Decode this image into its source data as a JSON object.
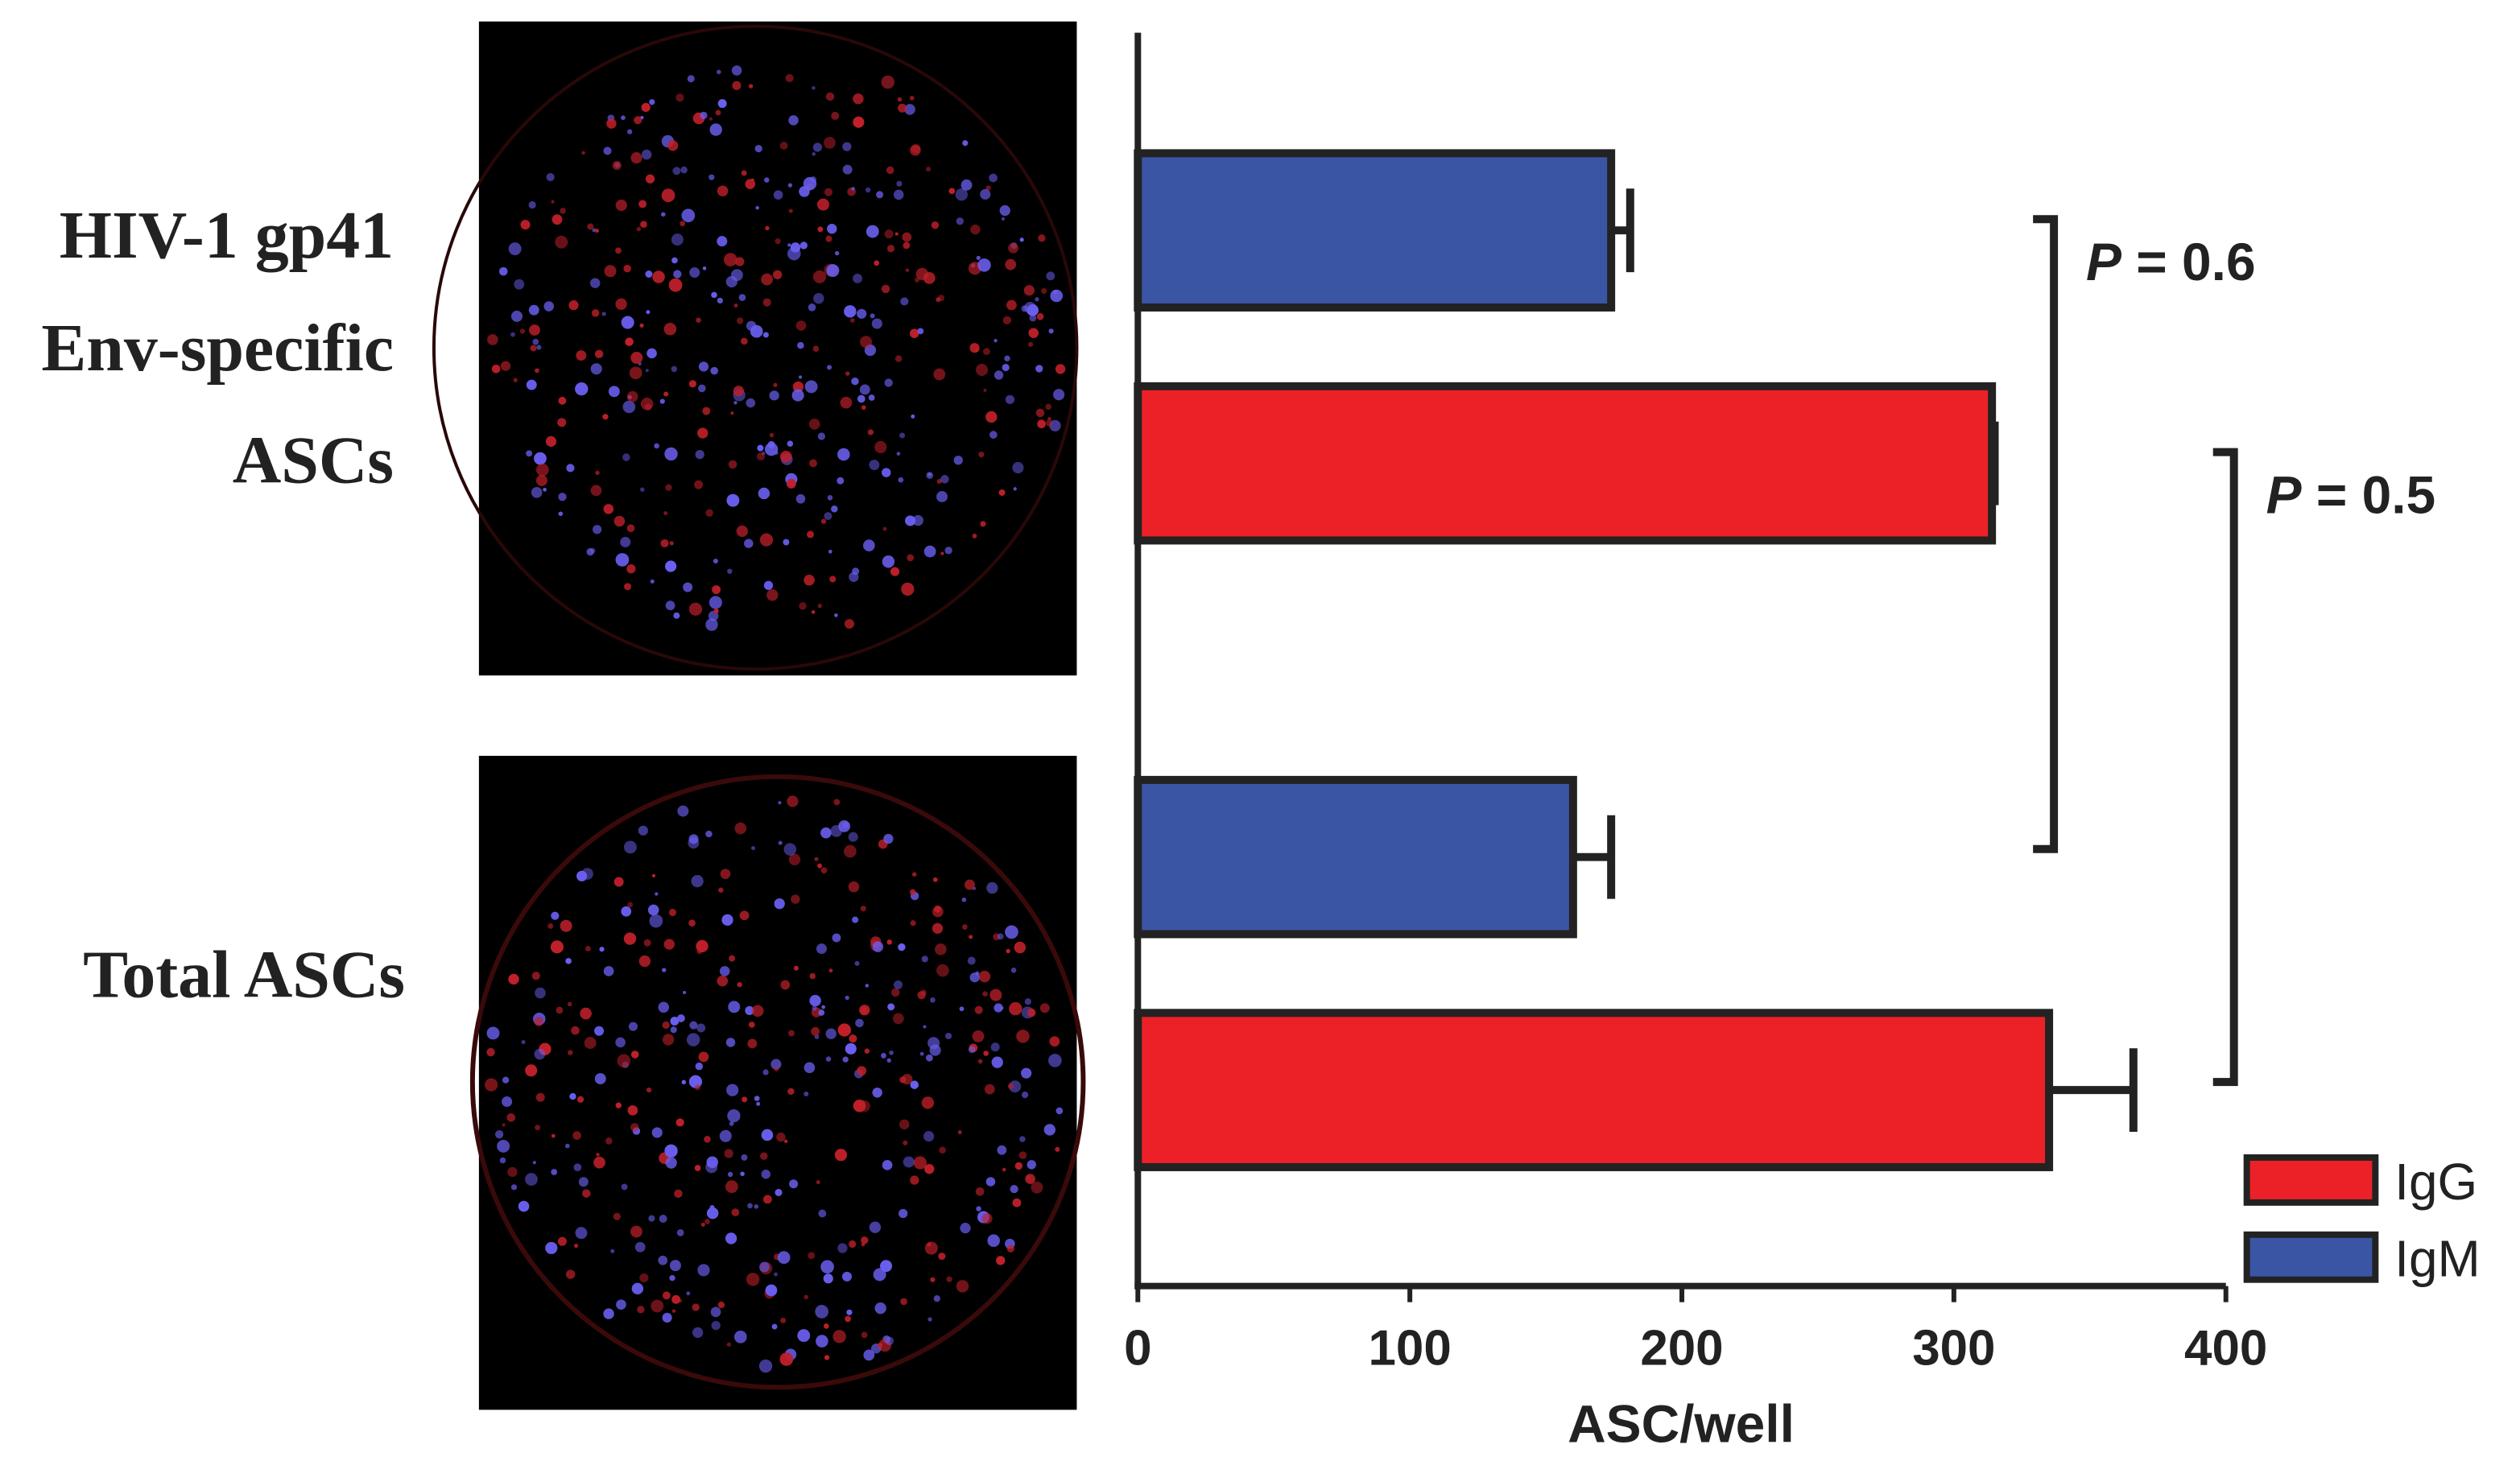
{
  "chart_data": {
    "type": "bar",
    "orientation": "horizontal",
    "categories": [
      [
        "HIV-1 gp41",
        "Env-specific",
        "ASCs"
      ],
      [
        "Total ASCs"
      ]
    ],
    "series": [
      {
        "name": "IgG",
        "color": "#ec2127",
        "values": [
          314,
          335
        ],
        "errors": [
          1,
          31
        ]
      },
      {
        "name": "IgM",
        "color": "#3b55a5",
        "values": [
          174,
          160
        ],
        "errors": [
          7,
          14
        ]
      }
    ],
    "xlim": [
      0,
      400
    ],
    "xticks": [
      0,
      100,
      200,
      300,
      400
    ],
    "xlabel": "ASC/well",
    "annotations": [
      {
        "italic": "P",
        "text": " = 0.6"
      },
      {
        "italic": "P",
        "text": " = 0.5"
      }
    ],
    "legend": "bottom-right"
  }
}
